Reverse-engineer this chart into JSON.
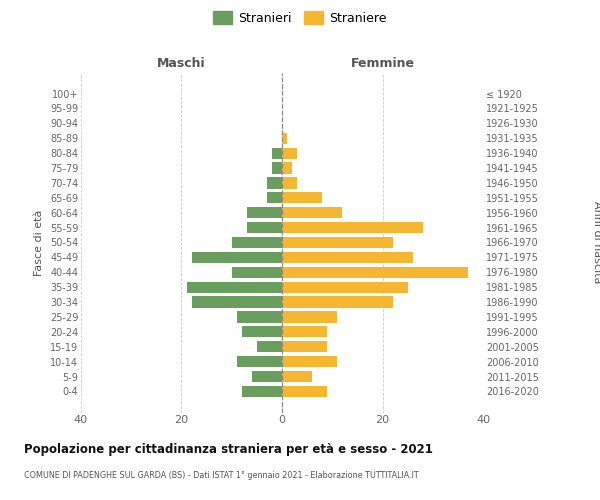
{
  "age_groups": [
    "100+",
    "95-99",
    "90-94",
    "85-89",
    "80-84",
    "75-79",
    "70-74",
    "65-69",
    "60-64",
    "55-59",
    "50-54",
    "45-49",
    "40-44",
    "35-39",
    "30-34",
    "25-29",
    "20-24",
    "15-19",
    "10-14",
    "5-9",
    "0-4"
  ],
  "birth_years": [
    "≤ 1920",
    "1921-1925",
    "1926-1930",
    "1931-1935",
    "1936-1940",
    "1941-1945",
    "1946-1950",
    "1951-1955",
    "1956-1960",
    "1961-1965",
    "1966-1970",
    "1971-1975",
    "1976-1980",
    "1981-1985",
    "1986-1990",
    "1991-1995",
    "1996-2000",
    "2001-2005",
    "2006-2010",
    "2011-2015",
    "2016-2020"
  ],
  "males": [
    0,
    0,
    0,
    0,
    2,
    2,
    3,
    3,
    7,
    7,
    10,
    18,
    10,
    19,
    18,
    9,
    8,
    5,
    9,
    6,
    8
  ],
  "females": [
    0,
    0,
    0,
    1,
    3,
    2,
    3,
    8,
    12,
    28,
    22,
    26,
    37,
    25,
    22,
    11,
    9,
    9,
    11,
    6,
    9
  ],
  "male_color": "#6a9e5e",
  "female_color": "#f5b731",
  "title_main": "Popolazione per cittadinanza straniera per età e sesso - 2021",
  "title_sub": "COMUNE DI PADENGHE SUL GARDA (BS) - Dati ISTAT 1° gennaio 2021 - Elaborazione TUTTITALIA.IT",
  "left_header": "Maschi",
  "right_header": "Femmine",
  "left_axis_label": "Fasce di età",
  "right_axis_label": "Anni di nascita",
  "legend_male": "Stranieri",
  "legend_female": "Straniere",
  "xlim": 40,
  "background_color": "#ffffff",
  "grid_color": "#cccccc"
}
